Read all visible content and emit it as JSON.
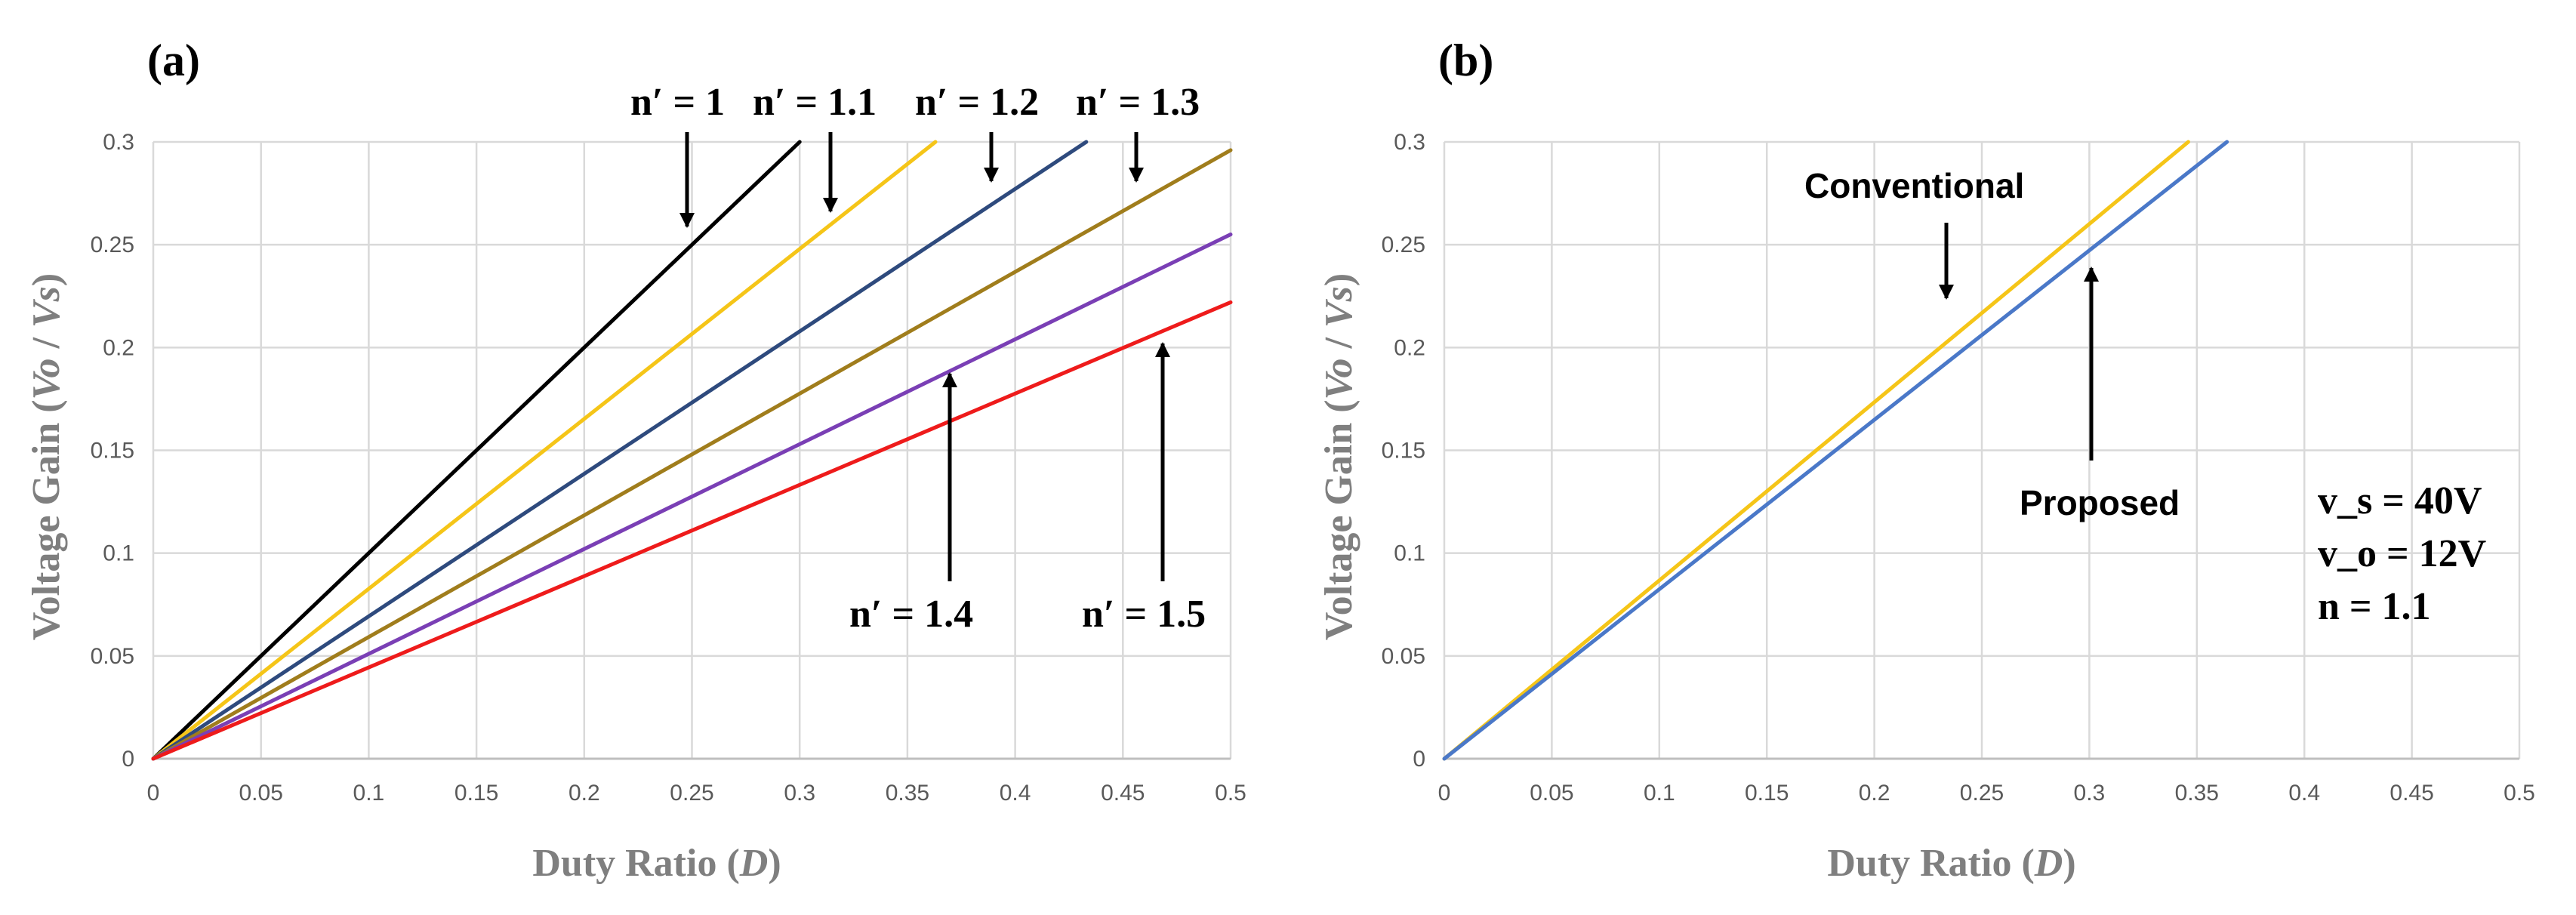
{
  "chart_data": [
    {
      "id": "a",
      "type": "line",
      "panel_label": "(a)",
      "xlabel": "Duty Ratio (D)",
      "ylabel": "Voltage Gain (Vo / Vs)",
      "xlim": [
        0,
        0.5
      ],
      "ylim": [
        0,
        0.3
      ],
      "x_ticks": [
        "0",
        "0.05",
        "0.1",
        "0.15",
        "0.2",
        "0.25",
        "0.3",
        "0.35",
        "0.4",
        "0.45",
        "0.5"
      ],
      "y_ticks": [
        "0",
        "0.05",
        "0.1",
        "0.15",
        "0.2",
        "0.25",
        "0.3"
      ],
      "grid": true,
      "series": [
        {
          "name": "n' = 1",
          "color": "#000000",
          "x": [
            0,
            0.3
          ],
          "y": [
            0,
            0.3
          ]
        },
        {
          "name": "n' = 1.1",
          "color": "#f5c518",
          "x": [
            0,
            0.363
          ],
          "y": [
            0,
            0.3
          ]
        },
        {
          "name": "n' = 1.2",
          "color": "#2e4a7d",
          "x": [
            0,
            0.433
          ],
          "y": [
            0,
            0.3
          ]
        },
        {
          "name": "n' = 1.3",
          "color": "#a07d1c",
          "x": [
            0,
            0.5
          ],
          "y": [
            0,
            0.296
          ]
        },
        {
          "name": "n' = 1.4",
          "color": "#7a3fb5",
          "x": [
            0,
            0.5
          ],
          "y": [
            0,
            0.255
          ]
        },
        {
          "name": "n' = 1.5",
          "color": "#ee1b1b",
          "x": [
            0,
            0.5
          ],
          "y": [
            0,
            0.222
          ]
        }
      ],
      "annotations": [
        "n′ = 1",
        "n′ = 1.1",
        "n′ = 1.2",
        "n′ = 1.3",
        "n′ = 1.4",
        "n′ = 1.5"
      ]
    },
    {
      "id": "b",
      "type": "line",
      "panel_label": "(b)",
      "xlabel": "Duty Ratio (D)",
      "ylabel": "Voltage Gain (Vo / Vs)",
      "xlim": [
        0,
        0.5
      ],
      "ylim": [
        0,
        0.3
      ],
      "x_ticks": [
        "0",
        "0.05",
        "0.1",
        "0.15",
        "0.2",
        "0.25",
        "0.3",
        "0.35",
        "0.4",
        "0.45",
        "0.5"
      ],
      "y_ticks": [
        "0",
        "0.05",
        "0.1",
        "0.15",
        "0.2",
        "0.25",
        "0.3"
      ],
      "grid": true,
      "series": [
        {
          "name": "Conventional",
          "color": "#f5c518",
          "x": [
            0,
            0.346
          ],
          "y": [
            0,
            0.3
          ]
        },
        {
          "name": "Proposed",
          "color": "#4a78c8",
          "x": [
            0,
            0.364
          ],
          "y": [
            0,
            0.3
          ]
        }
      ],
      "annotations": [
        "Conventional",
        "Proposed"
      ],
      "parameters": [
        "v_s = 40V",
        "v_o = 12V",
        "n = 1.1"
      ]
    }
  ]
}
